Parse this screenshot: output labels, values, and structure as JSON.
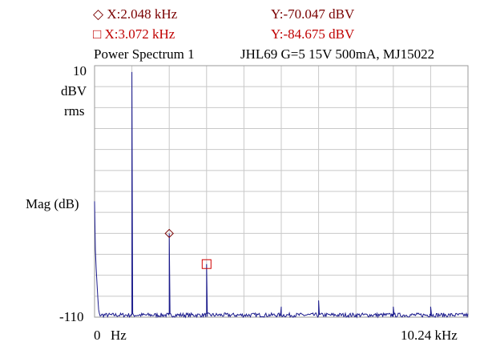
{
  "cursors": {
    "c1": {
      "marker": "diamond",
      "x_text": "X:2.048 kHz",
      "y_text": "Y:-70.047 dBV",
      "color": "#7a0000"
    },
    "c2": {
      "marker": "square",
      "x_text": "X:3.072 kHz",
      "y_text": "Y:-84.675 dBV",
      "color": "#d00000"
    }
  },
  "title_left": "Power Spectrum 1",
  "title_right": "JHL69 G=5 15V 500mA, MJ15022",
  "axis": {
    "y_top": "10",
    "y_unit_line1": "dBV",
    "y_unit_line2": "rms",
    "y_label": "Mag (dB)",
    "y_bottom": "-110",
    "x_left": "0",
    "x_left_unit": "Hz",
    "x_right": "10.24 kHz"
  },
  "chart_data": {
    "type": "line",
    "xlim": [
      0,
      10.24
    ],
    "ylim": [
      -110,
      10
    ],
    "grid": true,
    "grid_cols": 10,
    "grid_rows": 12,
    "series_color": "#1a1a8c",
    "noise_floor": -109,
    "peaks": [
      {
        "x": 0.0,
        "y": -56
      },
      {
        "x": 1.024,
        "y": 7
      },
      {
        "x": 2.048,
        "y": -70.047
      },
      {
        "x": 3.072,
        "y": -84.675
      },
      {
        "x": 5.12,
        "y": -105
      },
      {
        "x": 6.144,
        "y": -102
      },
      {
        "x": 8.192,
        "y": -105
      },
      {
        "x": 9.216,
        "y": -105
      }
    ],
    "markers": [
      {
        "x": 2.048,
        "y": -70.047,
        "shape": "diamond",
        "color": "#7a0000"
      },
      {
        "x": 3.072,
        "y": -84.675,
        "shape": "square",
        "color": "#d00000"
      }
    ]
  }
}
